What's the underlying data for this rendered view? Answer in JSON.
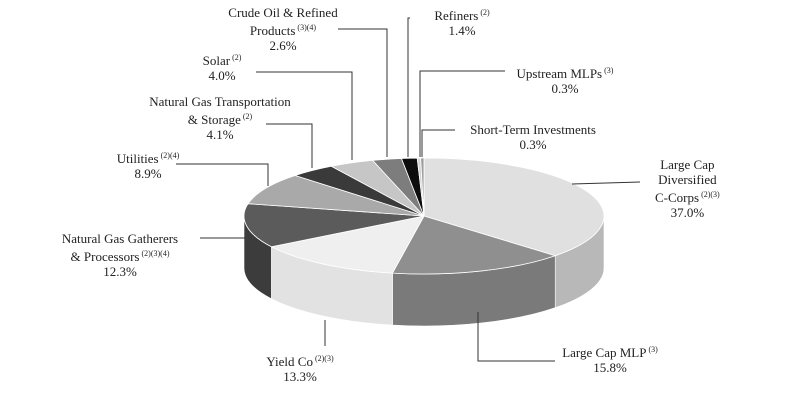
{
  "chart_data": {
    "type": "pie",
    "style": "3d",
    "title": "",
    "slices": [
      {
        "label": "Large Cap Diversified C-Corps",
        "note": "(2)(3)",
        "value": 37.0,
        "display": "37.0%",
        "color": "#e0e0e0",
        "side": "#b8b8b8"
      },
      {
        "label": "Large Cap MLP",
        "note": "(3)",
        "value": 15.8,
        "display": "15.8%",
        "color": "#8f8f8f",
        "side": "#7a7a7a"
      },
      {
        "label": "Yield Co",
        "note": "(2)(3)",
        "value": 13.3,
        "display": "13.3%",
        "color": "#efefef",
        "side": "#e2e2e2"
      },
      {
        "label": "Natural Gas Gatherers & Processors",
        "note": "(2)(3)(4)",
        "value": 12.3,
        "display": "12.3%",
        "color": "#5b5b5b",
        "side": "#3c3c3c"
      },
      {
        "label": "Utilities",
        "note": "(2)(4)",
        "value": 8.9,
        "display": "8.9%",
        "color": "#a9a9a9",
        "side": "#8c8c8c"
      },
      {
        "label": "Natural Gas Transportation & Storage",
        "note": "(2)",
        "value": 4.1,
        "display": "4.1%",
        "color": "#3a3a3a",
        "side": "#2a2a2a"
      },
      {
        "label": "Solar",
        "note": "(2)",
        "value": 4.0,
        "display": "4.0%",
        "color": "#c6c6c6",
        "side": "#aaaaaa"
      },
      {
        "label": "Crude Oil & Refined Products",
        "note": "(3)(4)",
        "value": 2.6,
        "display": "2.6%",
        "color": "#7d7d7d",
        "side": "#666666"
      },
      {
        "label": "Refiners",
        "note": "(2)",
        "value": 1.4,
        "display": "1.4%",
        "color": "#0d0d0d",
        "side": "#000000"
      },
      {
        "label": "Upstream MLPs",
        "note": "(3)",
        "value": 0.3,
        "display": "0.3%",
        "color": "#d4d4d4",
        "side": "#bdbdbd"
      },
      {
        "label": "Short-Term Investments",
        "note": "",
        "value": 0.3,
        "display": "0.3%",
        "color": "#9e9e9e",
        "side": "#878787"
      }
    ]
  },
  "labels": {
    "c_corps": {
      "l1": "Large Cap",
      "l2": "Diversified",
      "l3": "C-Corps",
      "note": "(2)(3)",
      "pct": "37.0%"
    },
    "mlp": {
      "l1": "Large Cap MLP",
      "note": "(3)",
      "pct": "15.8%"
    },
    "yield": {
      "l1": "Yield Co",
      "note": "(2)(3)",
      "pct": "13.3%"
    },
    "gatherers": {
      "l1": "Natural Gas Gatherers",
      "l2": "& Processors",
      "note": "(2)(3)(4)",
      "pct": "12.3%"
    },
    "utilities": {
      "l1": "Utilities",
      "note": "(2)(4)",
      "pct": "8.9%"
    },
    "transport": {
      "l1": "Natural Gas Transportation",
      "l2": "& Storage",
      "note": "(2)",
      "pct": "4.1%"
    },
    "solar": {
      "l1": "Solar",
      "note": "(2)",
      "pct": "4.0%"
    },
    "crude": {
      "l1": "Crude Oil & Refined",
      "l2": "Products",
      "note": "(3)(4)",
      "pct": "2.6%"
    },
    "refiners": {
      "l1": "Refiners",
      "note": "(2)",
      "pct": "1.4%"
    },
    "upstream": {
      "l1": "Upstream MLPs",
      "note": "(3)",
      "pct": "0.3%"
    },
    "short": {
      "l1": "Short-Term Investments",
      "pct": "0.3%"
    }
  }
}
